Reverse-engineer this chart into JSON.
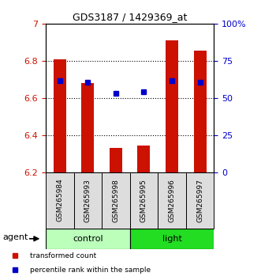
{
  "title": "GDS3187 / 1429369_at",
  "samples": [
    "GSM265984",
    "GSM265993",
    "GSM265998",
    "GSM265995",
    "GSM265996",
    "GSM265997"
  ],
  "bar_values": [
    6.81,
    6.68,
    6.33,
    6.345,
    6.91,
    6.855
  ],
  "blue_values": [
    6.695,
    6.685,
    6.625,
    6.635,
    6.695,
    6.685
  ],
  "bar_color": "#cc1100",
  "blue_color": "#0000cc",
  "ymin": 6.2,
  "ymax": 7.0,
  "yticks_left": [
    6.2,
    6.4,
    6.6,
    6.8,
    7.0
  ],
  "ytick_left_labels": [
    "6.2",
    "6.4",
    "6.6",
    "6.8",
    "7"
  ],
  "right_pct_ticks": [
    0,
    25,
    50,
    75,
    100
  ],
  "right_pct_labels": [
    "0",
    "25",
    "50",
    "75",
    "100%"
  ],
  "groups": [
    {
      "label": "control",
      "indices": [
        0,
        1,
        2
      ],
      "color": "#bbffbb"
    },
    {
      "label": "light",
      "indices": [
        3,
        4,
        5
      ],
      "color": "#22dd22"
    }
  ],
  "left_axis_color": "#cc1100",
  "right_axis_color": "#0000cc",
  "bar_width": 0.45,
  "blue_marker_size": 5,
  "grid_color": "#000000",
  "agent_label": "agent",
  "legend_items": [
    {
      "label": "transformed count",
      "color": "#cc1100"
    },
    {
      "label": "percentile rank within the sample",
      "color": "#0000cc"
    }
  ]
}
